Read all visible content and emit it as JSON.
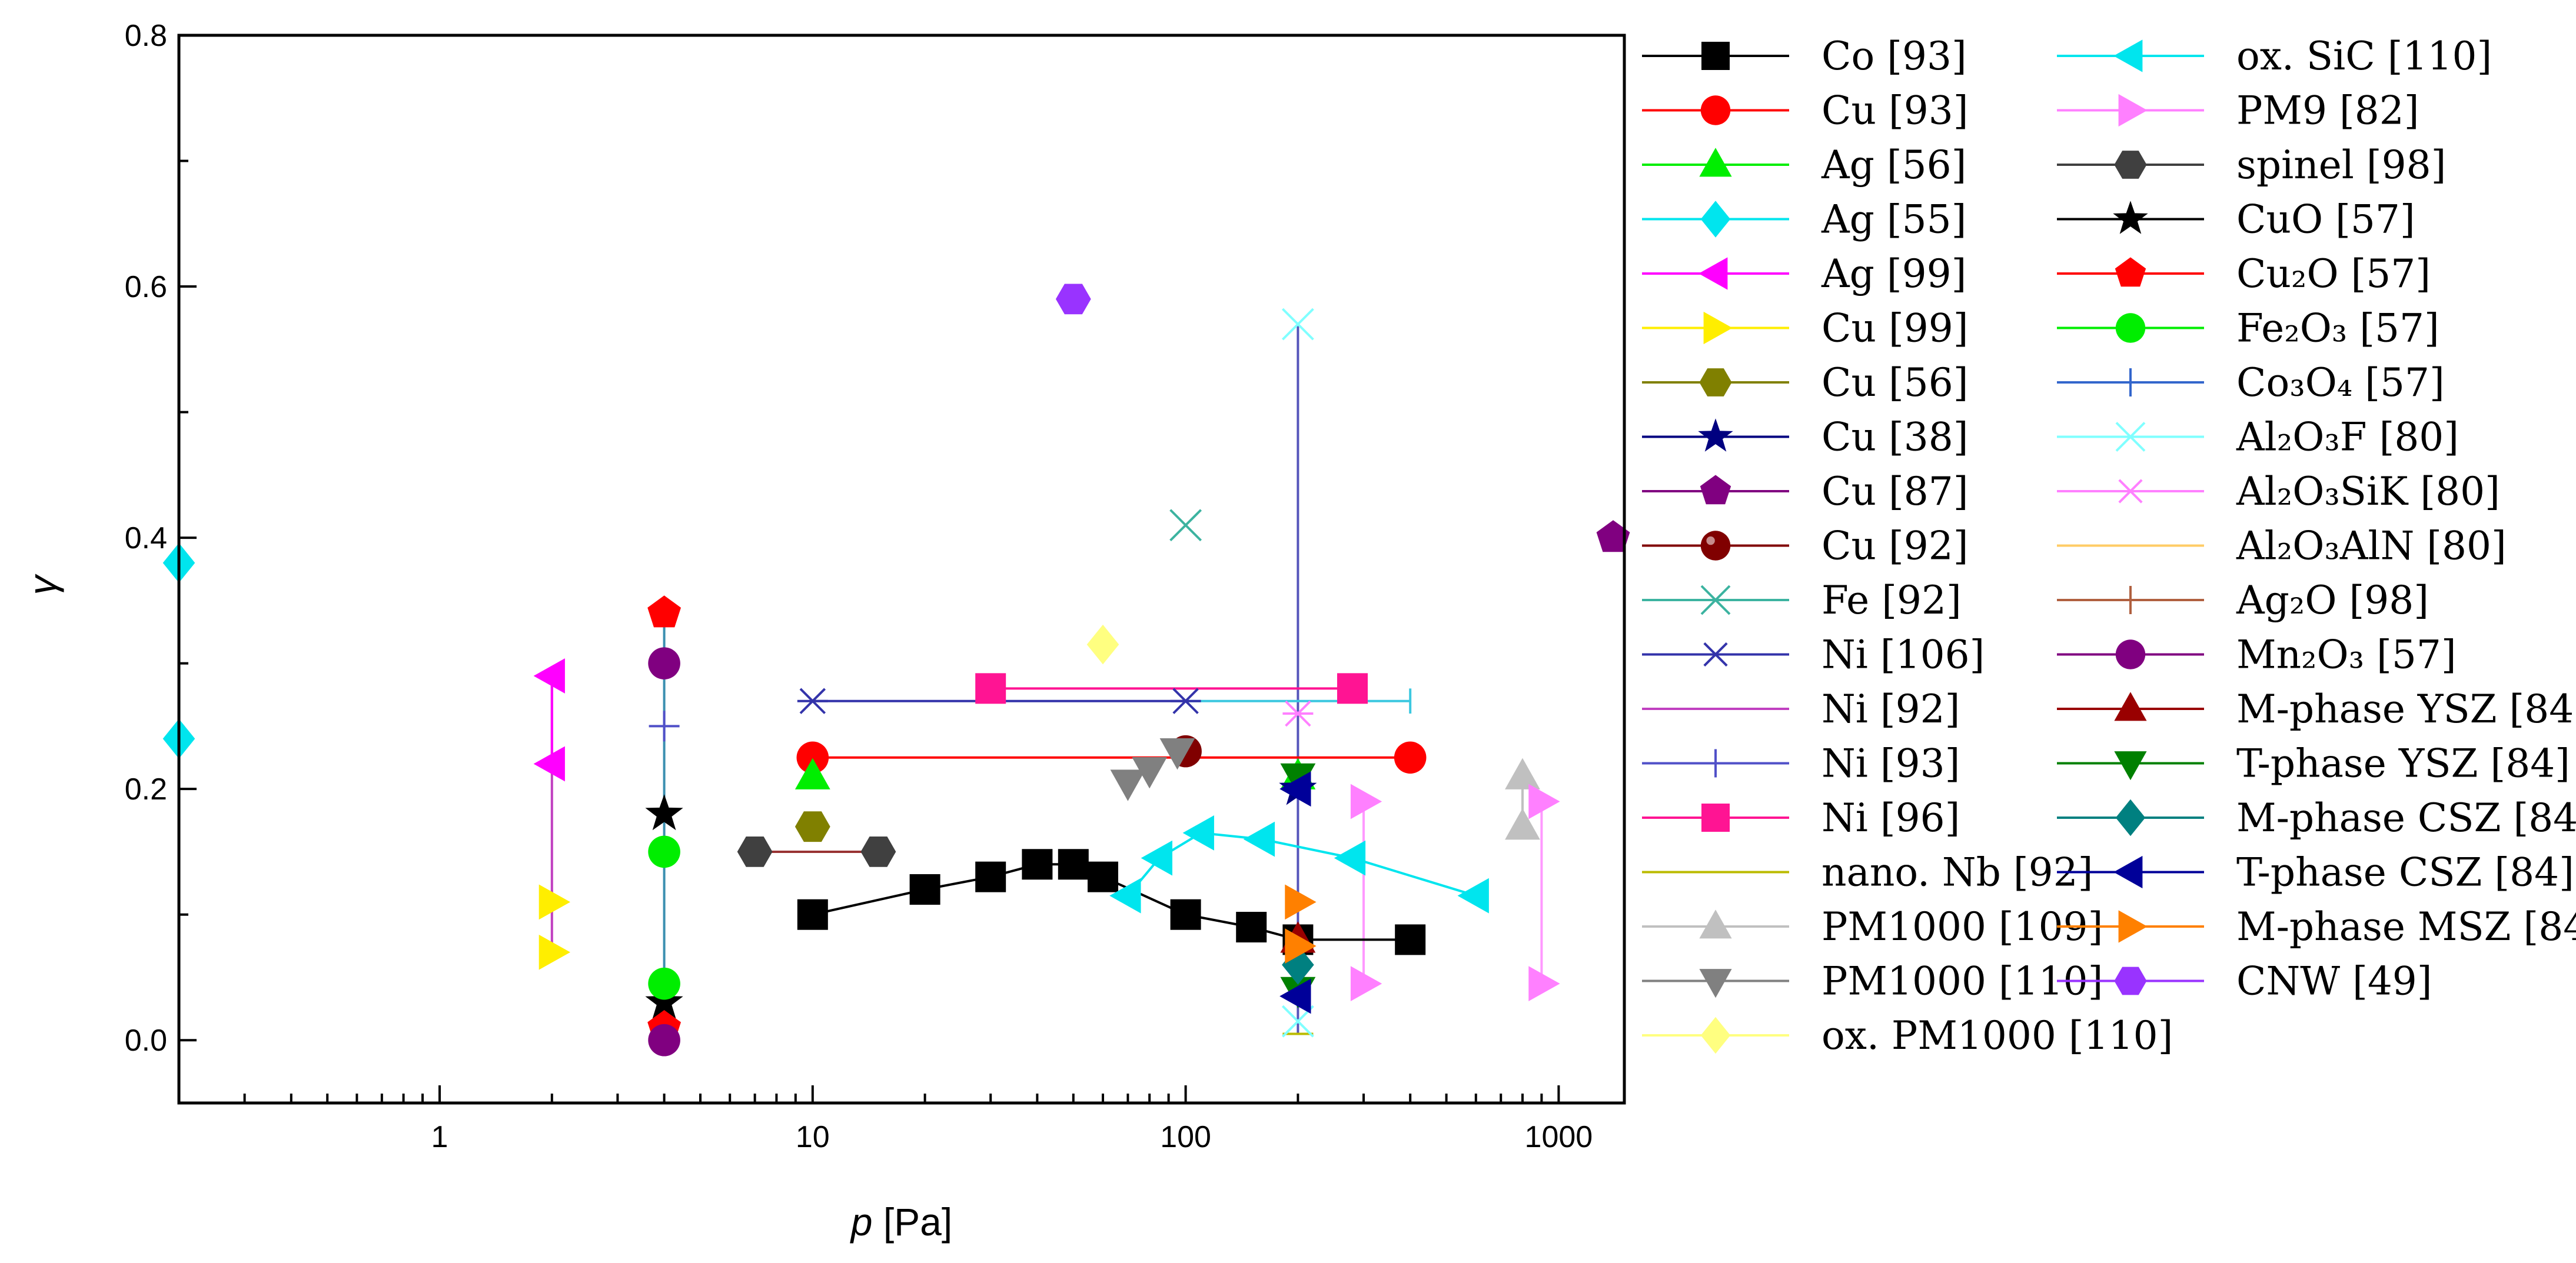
{
  "chart_data": {
    "type": "scatter",
    "xlabel": "p",
    "xlabel_unit": " [Pa]",
    "ylabel": "γ",
    "x_scale": "log",
    "xlim": [
      0.2,
      1500
    ],
    "ylim": [
      -0.05,
      0.8
    ],
    "x_ticks": [
      {
        "v": 1,
        "label": "1"
      },
      {
        "v": 10,
        "label": "10"
      },
      {
        "v": 100,
        "label": "100"
      },
      {
        "v": 1000,
        "label": "1000"
      }
    ],
    "y_ticks": [
      {
        "v": 0.0,
        "label": "0.0"
      },
      {
        "v": 0.2,
        "label": "0.2"
      },
      {
        "v": 0.4,
        "label": "0.4"
      },
      {
        "v": 0.6,
        "label": "0.6"
      },
      {
        "v": 0.8,
        "label": "0.8"
      }
    ],
    "grid": false,
    "legend_position": "right",
    "series": [
      {
        "label": "Co [93]",
        "color": "#000000",
        "marker": "square",
        "line": true,
        "points": [
          [
            10,
            0.1
          ],
          [
            20,
            0.12
          ],
          [
            30,
            0.13
          ],
          [
            40,
            0.14
          ],
          [
            50,
            0.14
          ],
          [
            60,
            0.13
          ],
          [
            100,
            0.1
          ],
          [
            150,
            0.09
          ],
          [
            200,
            0.08
          ],
          [
            400,
            0.08
          ]
        ]
      },
      {
        "label": "Cu [93]",
        "color": "#ff0000",
        "marker": "circle",
        "line": true,
        "points": [
          [
            10,
            0.225
          ],
          [
            400,
            0.225
          ]
        ]
      },
      {
        "label": "Ag [56]",
        "color": "#00ee00",
        "marker": "triangle-up",
        "line": false,
        "points": [
          [
            10,
            0.21
          ],
          [
            200,
            0.21
          ]
        ]
      },
      {
        "label": "Ag [55]",
        "color": "#00e5ee",
        "marker": "diamond",
        "line": true,
        "points": [
          [
            0.2,
            0.38
          ],
          [
            0.2,
            0.24
          ]
        ]
      },
      {
        "label": "Ag [99]",
        "color": "#ff00ff",
        "marker": "triangle-left",
        "line": true,
        "points": [
          [
            2,
            0.29
          ],
          [
            2,
            0.22
          ]
        ]
      },
      {
        "label": "Cu [99]",
        "color": "#ffee00",
        "marker": "triangle-right",
        "line": false,
        "points": [
          [
            2,
            0.11
          ],
          [
            2,
            0.07
          ]
        ]
      },
      {
        "label": "Cu [56]",
        "color": "#808000",
        "marker": "hexagon",
        "line": false,
        "points": [
          [
            10,
            0.17
          ]
        ]
      },
      {
        "label": "Cu [38]",
        "color": "#000080",
        "marker": "star",
        "line": false,
        "points": [
          [
            200,
            0.2
          ]
        ]
      },
      {
        "label": "Cu [87]",
        "color": "#800080",
        "marker": "pentagon",
        "line": false,
        "points": [
          [
            1400,
            0.4
          ]
        ]
      },
      {
        "label": "Cu [92]",
        "color": "#800000",
        "marker": "ball",
        "line": false,
        "points": [
          [
            100,
            0.23
          ]
        ]
      },
      {
        "label": "Fe [92]",
        "color": "#3cb3a0",
        "marker": "x",
        "line": false,
        "points": [
          [
            100,
            0.41
          ]
        ]
      },
      {
        "label": "Ni [106]",
        "color": "#3333aa",
        "marker": "asterisk",
        "line": true,
        "points": [
          [
            10,
            0.27
          ],
          [
            100,
            0.27
          ]
        ]
      },
      {
        "label": "Ni [92]",
        "color": "#c040c0",
        "marker": "dash",
        "line": false,
        "points": []
      },
      {
        "label": "Ni [93]",
        "color": "#5050c8",
        "marker": "plus",
        "line": false,
        "points": [
          [
            4,
            0.25
          ]
        ]
      },
      {
        "label": "Ni [96]",
        "color": "#ff1493",
        "marker": "square",
        "line": true,
        "points": [
          [
            30,
            0.28
          ],
          [
            280,
            0.28
          ]
        ]
      },
      {
        "label": "nano. Nb [92]",
        "color": "#bbbb00",
        "marker": "dash",
        "line": false,
        "points": [
          [
            200,
            0.005
          ]
        ]
      },
      {
        "label": "PM1000 [109]",
        "color": "#c0c0c0",
        "marker": "triangle-up",
        "line": true,
        "points": [
          [
            800,
            0.21
          ],
          [
            800,
            0.17
          ]
        ]
      },
      {
        "label": "PM1000 [110]",
        "color": "#808080",
        "marker": "triangle-down",
        "line": false,
        "points": [
          [
            70,
            0.205
          ],
          [
            80,
            0.215
          ],
          [
            95,
            0.23
          ]
        ]
      },
      {
        "label": "ox. PM1000 [110]",
        "color": "#ffff80",
        "marker": "diamond",
        "line": false,
        "points": [
          [
            60,
            0.315
          ]
        ]
      },
      {
        "label": "ox. SiC [110]",
        "color": "#00e5ee",
        "marker": "triangle-left",
        "line": true,
        "points": [
          [
            70,
            0.115
          ],
          [
            85,
            0.145
          ],
          [
            110,
            0.165
          ],
          [
            160,
            0.16
          ],
          [
            280,
            0.145
          ],
          [
            600,
            0.115
          ]
        ]
      },
      {
        "label": "PM9 [82]",
        "color": "#ff80ff",
        "marker": "triangle-right",
        "line": false,
        "points": [
          [
            300,
            0.19
          ],
          [
            300,
            0.045
          ],
          [
            900,
            0.19
          ],
          [
            900,
            0.045
          ]
        ]
      },
      {
        "label": "spinel [98]",
        "color": "#404040",
        "marker": "hexagon",
        "line": false,
        "points": [
          [
            7,
            0.15
          ],
          [
            15,
            0.15
          ]
        ]
      },
      {
        "label": "CuO [57]",
        "color": "#000000",
        "marker": "star",
        "line": false,
        "points": [
          [
            4,
            0.18
          ],
          [
            4,
            0.03
          ]
        ]
      },
      {
        "label": "Cu₂O [57]",
        "color": "#ff0000",
        "marker": "pentagon",
        "line": false,
        "points": [
          [
            4,
            0.34
          ],
          [
            4,
            0.01
          ]
        ]
      },
      {
        "label": "Fe₂O₃ [57]",
        "color": "#00ee00",
        "marker": "circle",
        "line": false,
        "points": [
          [
            4,
            0.15
          ],
          [
            4,
            0.045
          ]
        ]
      },
      {
        "label": "Co₃O₄ [57]",
        "color": "#3366cc",
        "marker": "plus",
        "line": false,
        "points": []
      },
      {
        "label": "Al₂O₃F [80]",
        "color": "#80ffff",
        "marker": "x",
        "line": false,
        "points": [
          [
            200,
            0.57
          ],
          [
            200,
            0.015
          ]
        ]
      },
      {
        "label": "Al₂O₃SiK [80]",
        "color": "#ff80ff",
        "marker": "asterisk",
        "line": false,
        "points": [
          [
            200,
            0.26
          ]
        ]
      },
      {
        "label": "Al₂O₃AlN [80]",
        "color": "#ffcc66",
        "marker": "dash",
        "line": false,
        "points": []
      },
      {
        "label": "Ag₂O [98]",
        "color": "#b06040",
        "marker": "plus",
        "line": false,
        "points": []
      },
      {
        "label": "Mn₂O₃ [57]",
        "color": "#800080",
        "marker": "circle",
        "line": false,
        "points": [
          [
            4,
            0.3
          ],
          [
            4,
            0.0
          ]
        ]
      },
      {
        "label": "M-phase YSZ [84]",
        "color": "#990000",
        "marker": "triangle-up",
        "line": false,
        "points": [
          [
            200,
            0.08
          ]
        ]
      },
      {
        "label": "T-phase YSZ [84]",
        "color": "#008000",
        "marker": "triangle-down",
        "line": false,
        "points": [
          [
            200,
            0.21
          ],
          [
            200,
            0.04
          ]
        ]
      },
      {
        "label": "M-phase CSZ [84]",
        "color": "#008080",
        "marker": "diamond",
        "line": false,
        "points": [
          [
            200,
            0.06
          ]
        ]
      },
      {
        "label": "T-phase CSZ [84]",
        "color": "#000099",
        "marker": "triangle-left",
        "line": false,
        "points": [
          [
            200,
            0.2
          ],
          [
            200,
            0.035
          ]
        ]
      },
      {
        "label": "M-phase MSZ [84]",
        "color": "#ff8000",
        "marker": "triangle-right",
        "line": false,
        "points": [
          [
            200,
            0.11
          ],
          [
            200,
            0.075
          ]
        ]
      },
      {
        "label": "CNW [49]",
        "color": "#9933ff",
        "marker": "hexagon",
        "line": false,
        "points": [
          [
            50,
            0.59
          ]
        ]
      }
    ]
  }
}
